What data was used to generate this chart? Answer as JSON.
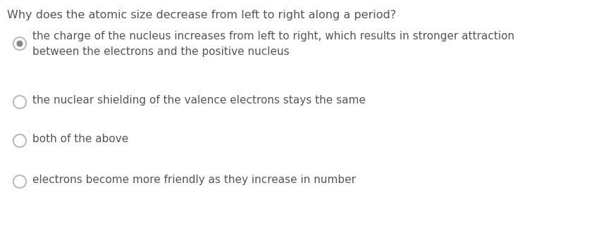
{
  "background_color": "#ffffff",
  "question": "Why does the atomic size decrease from left to right along a period?",
  "question_color": "#555555",
  "question_fontsize": 11.5,
  "options": [
    {
      "text": "the charge of the nucleus increases from left to right, which results in stronger attraction\nbetween the electrons and the positive nucleus",
      "selected": true,
      "highlight_color": "#e8f0f8"
    },
    {
      "text": "the nuclear shielding of the valence electrons stays the same",
      "selected": false,
      "highlight_color": null
    },
    {
      "text": "both of the above",
      "selected": false,
      "highlight_color": null
    },
    {
      "text": "electrons become more friendly as they increase in number",
      "selected": false,
      "highlight_color": null
    }
  ],
  "option_fontsize": 11.0,
  "option_text_color": "#555555",
  "radio_outer_color": "#bbbbbb",
  "radio_selected_dot": "#888888",
  "radio_unselected_fill": "#ffffff"
}
